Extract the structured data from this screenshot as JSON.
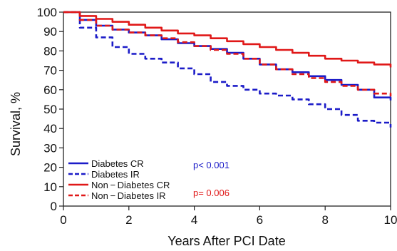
{
  "chart_data": {
    "type": "line",
    "title": "",
    "xlabel": "Years After PCI Date",
    "ylabel": "Survival, %",
    "xlim": [
      0,
      10
    ],
    "ylim": [
      0,
      100
    ],
    "xticks": [
      "0",
      "2",
      "4",
      "6",
      "8",
      "10"
    ],
    "yticks": [
      "0",
      "10",
      "20",
      "30",
      "40",
      "50",
      "60",
      "70",
      "80",
      "90",
      "100"
    ],
    "grid": false,
    "legend_position": "bottom-left",
    "series": [
      {
        "name": "Diabetes CR",
        "color": "#1c1cc8",
        "dash": "solid",
        "x": [
          0,
          0.5,
          1,
          1.5,
          2,
          2.5,
          3,
          3.5,
          4,
          4.5,
          5,
          5.5,
          6,
          6.5,
          7,
          7.5,
          8,
          8.5,
          9,
          9.5,
          10
        ],
        "y": [
          100,
          96,
          93,
          91,
          89.5,
          88,
          86,
          84,
          82.5,
          81,
          79,
          76,
          73,
          70.5,
          69,
          67,
          65,
          62.5,
          60,
          56,
          54.5
        ]
      },
      {
        "name": "Diabetes IR",
        "color": "#1c1cc8",
        "dash": "dashed",
        "x": [
          0,
          0.5,
          1,
          1.5,
          2,
          2.5,
          3,
          3.5,
          4,
          4.5,
          5,
          5.5,
          6,
          6.5,
          7,
          7.5,
          8,
          8.5,
          9,
          9.5,
          10
        ],
        "y": [
          100,
          92,
          87,
          82,
          78.5,
          76,
          74,
          71,
          68,
          64,
          62,
          60,
          58,
          57,
          55,
          52.5,
          50,
          47,
          44,
          43,
          40.5
        ]
      },
      {
        "name": "Non − Diabetes CR",
        "color": "#e01818",
        "dash": "solid",
        "x": [
          0,
          0.5,
          1,
          1.5,
          2,
          2.5,
          3,
          3.5,
          4,
          4.5,
          5,
          5.5,
          6,
          6.5,
          7,
          7.5,
          8,
          8.5,
          9,
          9.5,
          10
        ],
        "y": [
          100,
          98,
          96.5,
          95,
          93.5,
          92,
          90.5,
          89,
          88,
          86.5,
          85,
          83.5,
          82,
          80.5,
          79,
          77.5,
          76,
          75,
          74,
          73,
          71.5
        ]
      },
      {
        "name": "Non − Diabetes IR",
        "color": "#e01818",
        "dash": "dashed",
        "x": [
          0,
          0.5,
          1,
          1.5,
          2,
          2.5,
          3,
          3.5,
          4,
          4.5,
          5,
          5.5,
          6,
          6.5,
          7,
          7.5,
          8,
          8.5,
          9,
          9.5,
          10
        ],
        "y": [
          100,
          96,
          93,
          91,
          89.5,
          88,
          86.5,
          84.5,
          82.5,
          80.5,
          78.5,
          76,
          73,
          70.5,
          68,
          66,
          64,
          62,
          60,
          58,
          56.5
        ]
      }
    ],
    "annotations": [
      {
        "text": "p< 0.001",
        "color": "#1c1cc8"
      },
      {
        "text": "p= 0.006",
        "color": "#e01818"
      }
    ]
  }
}
